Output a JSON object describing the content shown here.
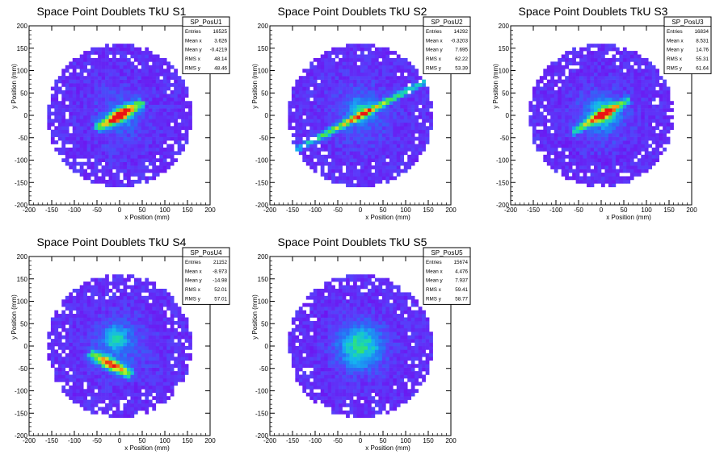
{
  "chart_data": [
    {
      "type": "heatmap",
      "title": "Space Point Doublets TkU S1",
      "xlabel": "x Position (mm)",
      "ylabel": "y Position (mm)",
      "xlim": [
        -200,
        200
      ],
      "ylim": [
        -200,
        200
      ],
      "xticks": [
        -200,
        -150,
        -100,
        -50,
        0,
        50,
        100,
        150,
        200
      ],
      "yticks": [
        -200,
        -150,
        -100,
        -50,
        0,
        50,
        100,
        150,
        200
      ],
      "stats": {
        "name": "SP_PosU1",
        "rows": [
          {
            "label": "Entries",
            "value": "16525"
          },
          {
            "label": "Mean x",
            "value": "3.626"
          },
          {
            "label": "Mean y",
            "value": "-0.4219"
          },
          {
            "label": "RMS x",
            "value": "48.14"
          },
          {
            "label": "RMS y",
            "value": "48.46"
          }
        ]
      },
      "distribution": {
        "radius": 160,
        "diffuse_spread": 45,
        "diffuse_amp": 0.25,
        "band": {
          "angle_deg": 30,
          "length": 60,
          "width": 8,
          "amp": 1.0
        },
        "hot": {
          "x": 5,
          "y": -2,
          "amp": 0.2
        }
      }
    },
    {
      "type": "heatmap",
      "title": "Space Point Doublets TkU S2",
      "xlabel": "x Position (mm)",
      "ylabel": "y Position (mm)",
      "xlim": [
        -200,
        200
      ],
      "ylim": [
        -200,
        200
      ],
      "xticks": [
        -200,
        -150,
        -100,
        -50,
        0,
        50,
        100,
        150,
        200
      ],
      "yticks": [
        -200,
        -150,
        -100,
        -50,
        0,
        50,
        100,
        150,
        200
      ],
      "stats": {
        "name": "SP_PosU2",
        "rows": [
          {
            "label": "Entries",
            "value": "14292"
          },
          {
            "label": "Mean x",
            "value": "-0.3203"
          },
          {
            "label": "Mean y",
            "value": "7.695"
          },
          {
            "label": "RMS x",
            "value": "62.22"
          },
          {
            "label": "RMS y",
            "value": "53.39"
          }
        ]
      },
      "distribution": {
        "radius": 160,
        "diffuse_spread": 50,
        "diffuse_amp": 0.3,
        "band": {
          "angle_deg": 28,
          "length": 160,
          "width": 5,
          "amp": 0.75
        },
        "hot": {
          "x": 0,
          "y": 12,
          "amp": 0.25
        }
      }
    },
    {
      "type": "heatmap",
      "title": "Space Point Doublets TkU S3",
      "xlabel": "x Position (mm)",
      "ylabel": "y Position (mm)",
      "xlim": [
        -200,
        200
      ],
      "ylim": [
        -200,
        200
      ],
      "xticks": [
        -200,
        -150,
        -100,
        -50,
        0,
        50,
        100,
        150,
        200
      ],
      "yticks": [
        -200,
        -150,
        -100,
        -50,
        0,
        50,
        100,
        150,
        200
      ],
      "stats": {
        "name": "SP_PosU3",
        "rows": [
          {
            "label": "Entries",
            "value": "16834"
          },
          {
            "label": "Mean x",
            "value": "8.531"
          },
          {
            "label": "Mean y",
            "value": "14.76"
          },
          {
            "label": "RMS x",
            "value": "55.31"
          },
          {
            "label": "RMS y",
            "value": "61.64"
          }
        ]
      },
      "distribution": {
        "radius": 160,
        "diffuse_spread": 40,
        "diffuse_amp": 0.45,
        "band": {
          "angle_deg": 30,
          "length": 75,
          "width": 6,
          "amp": 0.8
        },
        "hot": {
          "x": 10,
          "y": 5,
          "amp": 0.35
        }
      }
    },
    {
      "type": "heatmap",
      "title": "Space Point Doublets TkU S4",
      "xlabel": "x Position (mm)",
      "ylabel": "y Position (mm)",
      "xlim": [
        -200,
        200
      ],
      "ylim": [
        -200,
        200
      ],
      "xticks": [
        -200,
        -150,
        -100,
        -50,
        0,
        50,
        100,
        150,
        200
      ],
      "yticks": [
        -200,
        -150,
        -100,
        -50,
        0,
        50,
        100,
        150,
        200
      ],
      "stats": {
        "name": "SP_PosU4",
        "rows": [
          {
            "label": "Entries",
            "value": "21152"
          },
          {
            "label": "Mean x",
            "value": "-8.973"
          },
          {
            "label": "Mean y",
            "value": "-14.98"
          },
          {
            "label": "RMS x",
            "value": "52.01"
          },
          {
            "label": "RMS y",
            "value": "57.01"
          }
        ]
      },
      "distribution": {
        "radius": 160,
        "diffuse_spread": 45,
        "diffuse_amp": 0.35,
        "band": {
          "angle_deg": -28,
          "length": 55,
          "width": 8,
          "amp": 0.95,
          "cx": -20,
          "cy": -40
        },
        "hot": {
          "x": -10,
          "y": 20,
          "amp": 0.3
        }
      }
    },
    {
      "type": "heatmap",
      "title": "Space Point Doublets TkU S5",
      "xlabel": "x Position (mm)",
      "ylabel": "y Position (mm)",
      "xlim": [
        -200,
        200
      ],
      "ylim": [
        -200,
        200
      ],
      "xticks": [
        -200,
        -150,
        -100,
        -50,
        0,
        50,
        100,
        150,
        200
      ],
      "yticks": [
        -200,
        -150,
        -100,
        -50,
        0,
        50,
        100,
        150,
        200
      ],
      "stats": {
        "name": "SP_PosU5",
        "rows": [
          {
            "label": "Entries",
            "value": "15674"
          },
          {
            "label": "Mean x",
            "value": "4.476"
          },
          {
            "label": "Mean y",
            "value": "7.937"
          },
          {
            "label": "RMS x",
            "value": "59.41"
          },
          {
            "label": "RMS y",
            "value": "58.77"
          }
        ]
      },
      "distribution": {
        "radius": 160,
        "diffuse_spread": 35,
        "diffuse_amp": 1.0,
        "band": null,
        "hot": {
          "x": 8,
          "y": 2,
          "amp": 0.0
        }
      }
    }
  ]
}
